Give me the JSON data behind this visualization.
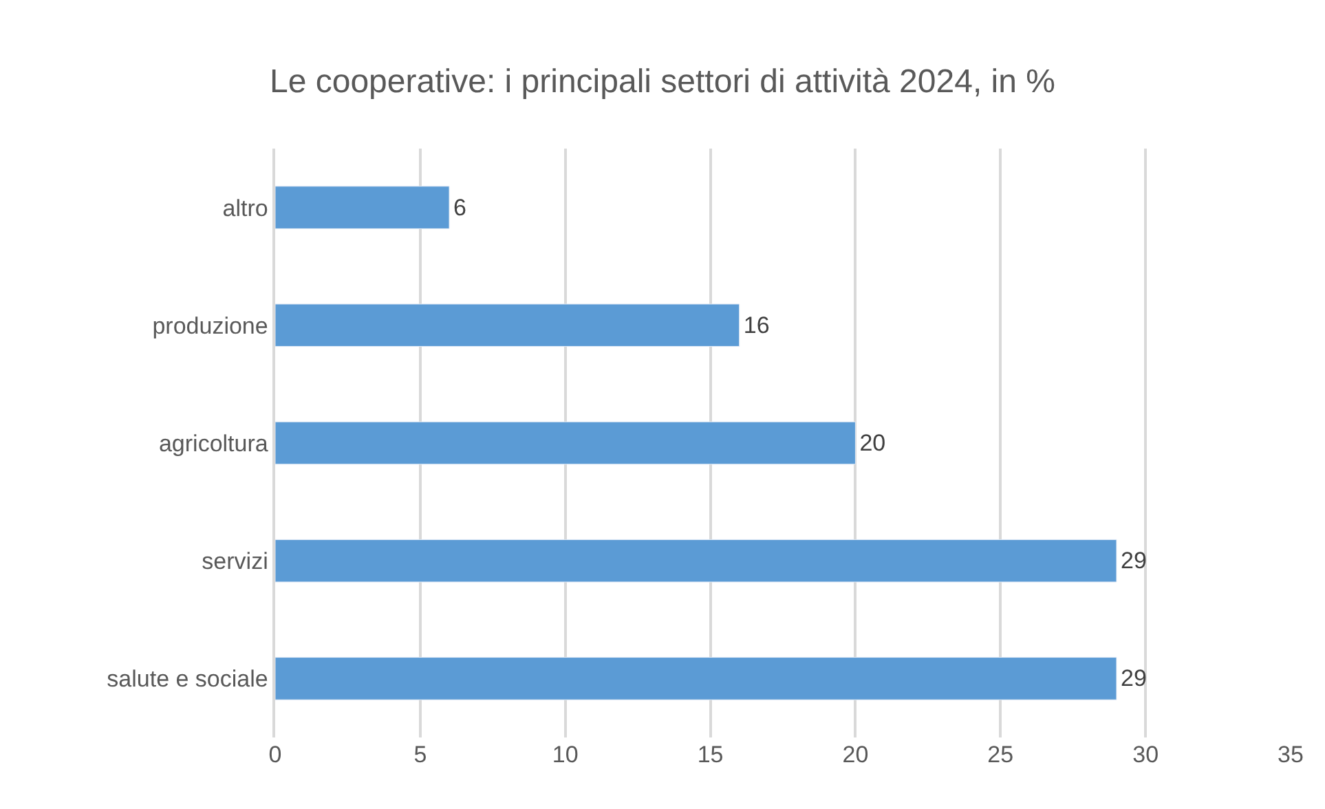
{
  "chart_data": {
    "type": "bar",
    "orientation": "horizontal",
    "title": "Le cooperative: i principali settori di attività 2024, in %",
    "categories": [
      "altro",
      "produzione",
      "agricoltura",
      "servizi",
      "salute e sociale"
    ],
    "values": [
      6,
      16,
      20,
      29,
      29
    ],
    "color": "#5b9bd5",
    "xlim": [
      0,
      35
    ],
    "xticks": [
      0,
      5,
      10,
      15,
      20,
      25,
      30,
      35
    ],
    "grid": "x",
    "data_labels": true,
    "legend": false
  }
}
